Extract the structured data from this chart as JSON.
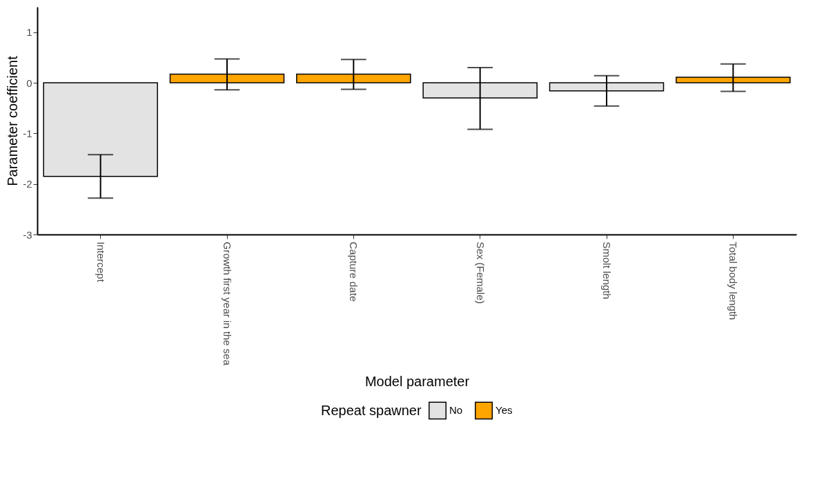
{
  "chart_data": {
    "type": "bar",
    "xlabel": "Model parameter",
    "ylabel": "Parameter coefficient",
    "legend_title": "Repeat spawner",
    "categories": [
      "Intercept",
      "Growth first year in the sea",
      "Capture date",
      "Sex (Female)",
      "Smolt length",
      "Total body length"
    ],
    "series": [
      {
        "name": "No",
        "color": "#e3e3e3",
        "values": [
          -1.85,
          null,
          null,
          -0.3,
          -0.16,
          null
        ],
        "errors": [
          [
            -2.28,
            -1.42
          ],
          null,
          null,
          [
            -0.92,
            0.3
          ],
          [
            -0.46,
            0.14
          ],
          null
        ]
      },
      {
        "name": "Yes",
        "color": "#ffa500",
        "values": [
          null,
          0.17,
          0.17,
          null,
          null,
          0.11
        ],
        "errors": [
          null,
          [
            -0.14,
            0.47
          ],
          [
            -0.13,
            0.46
          ],
          null,
          null,
          [
            -0.17,
            0.37
          ]
        ]
      }
    ],
    "ylim": [
      -3,
      1.5
    ],
    "yticks": [
      -3,
      -2,
      -1,
      0,
      1
    ],
    "grid": false,
    "legend": "bottom"
  }
}
